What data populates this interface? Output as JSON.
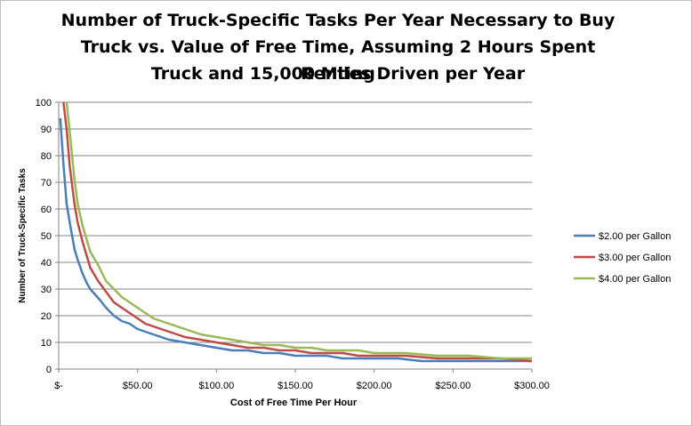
{
  "chart_data": {
    "type": "line",
    "title_lines": [
      "Number of Truck-Specific Tasks Per Year Necessary to Buy",
      "Truck vs. Value of Free Time, Assuming 2 Hours Spent Renting",
      "Truck and 15,000 Miles Driven per Year"
    ],
    "xlabel": "Cost of Free Time Per Hour",
    "ylabel": "Number of Truck-Specific Tasks",
    "xlim": [
      0,
      300
    ],
    "ylim": [
      0,
      100
    ],
    "x_ticks": [
      0,
      50,
      100,
      150,
      200,
      250,
      300
    ],
    "x_tick_labels": [
      "$-",
      "$50.00",
      "$100.00",
      "$150.00",
      "$200.00",
      "$250.00",
      "$300.00"
    ],
    "y_ticks": [
      0,
      10,
      20,
      30,
      40,
      50,
      60,
      70,
      80,
      90,
      100
    ],
    "y_tick_labels": [
      "0",
      "10",
      "20",
      "30",
      "40",
      "50",
      "60",
      "70",
      "80",
      "90",
      "100"
    ],
    "grid": true,
    "legend_position": "right",
    "series": [
      {
        "name": "$2.00 per Gallon",
        "color": "#4a7ebb",
        "x": [
          1,
          3,
          5,
          7,
          10,
          12,
          15,
          18,
          20,
          23,
          26,
          30,
          35,
          40,
          45,
          50,
          55,
          60,
          70,
          80,
          90,
          100,
          110,
          120,
          130,
          140,
          150,
          160,
          170,
          180,
          190,
          200,
          215,
          230,
          250,
          270,
          290,
          300
        ],
        "y": [
          94,
          77,
          62,
          55,
          45,
          41,
          36,
          32,
          30,
          28,
          26,
          23,
          20,
          18,
          17,
          15,
          14,
          13,
          11,
          10,
          9,
          8,
          7,
          7,
          6,
          6,
          5,
          5,
          5,
          4,
          4,
          4,
          4,
          3,
          3,
          3,
          3,
          3
        ]
      },
      {
        "name": "$3.00 per Gallon",
        "color": "#be4b48",
        "x": [
          3,
          5,
          7,
          10,
          12,
          15,
          18,
          20,
          25,
          30,
          35,
          40,
          45,
          50,
          55,
          60,
          70,
          80,
          90,
          100,
          110,
          120,
          130,
          140,
          150,
          160,
          170,
          180,
          190,
          200,
          220,
          240,
          260,
          280,
          300
        ],
        "y": [
          100,
          90,
          76,
          62,
          55,
          48,
          42,
          38,
          33,
          29,
          25,
          23,
          21,
          19,
          17,
          16,
          14,
          12,
          11,
          10,
          9,
          8,
          8,
          7,
          7,
          6,
          6,
          6,
          5,
          5,
          5,
          4,
          4,
          4,
          3
        ]
      },
      {
        "name": "$4.00 per Gallon",
        "color": "#98b954",
        "x": [
          5,
          7,
          10,
          12,
          15,
          18,
          20,
          25,
          30,
          35,
          40,
          45,
          50,
          55,
          60,
          70,
          80,
          90,
          100,
          110,
          120,
          130,
          140,
          150,
          160,
          170,
          180,
          190,
          200,
          220,
          240,
          260,
          280,
          300
        ],
        "y": [
          100,
          89,
          71,
          62,
          54,
          48,
          44,
          39,
          33,
          30,
          27,
          25,
          23,
          21,
          19,
          17,
          15,
          13,
          12,
          11,
          10,
          9,
          9,
          8,
          8,
          7,
          7,
          7,
          6,
          6,
          5,
          5,
          4,
          4
        ]
      }
    ]
  }
}
